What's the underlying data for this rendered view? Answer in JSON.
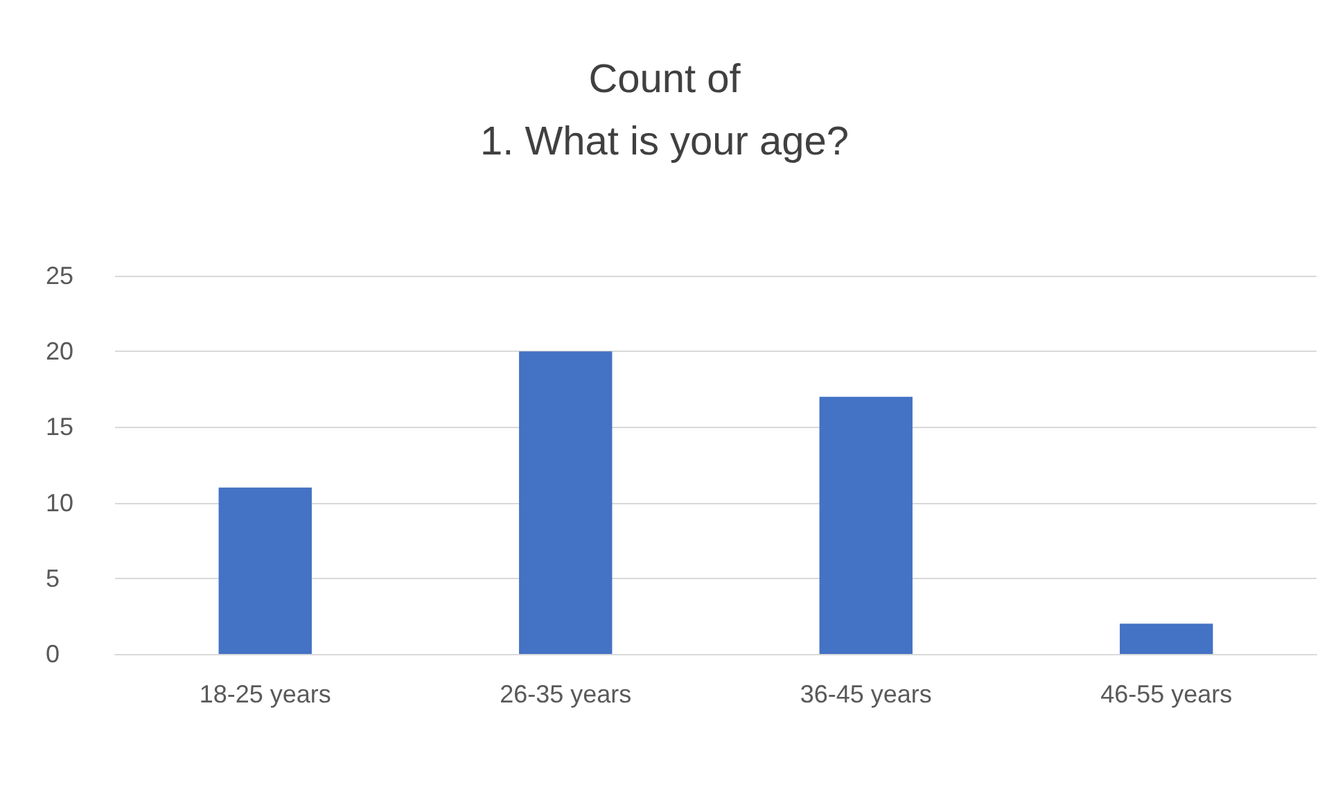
{
  "chart_data": {
    "type": "bar",
    "title": "Count of\n1. What is your age?",
    "categories": [
      "18-25 years",
      "26-35 years",
      "36-45 years",
      "46-55 years"
    ],
    "values": [
      11,
      20,
      17,
      2
    ],
    "color": "#4472c4",
    "ylim": [
      0,
      25
    ],
    "yticks": [
      0,
      5,
      10,
      15,
      20,
      25
    ],
    "grid": "y"
  }
}
